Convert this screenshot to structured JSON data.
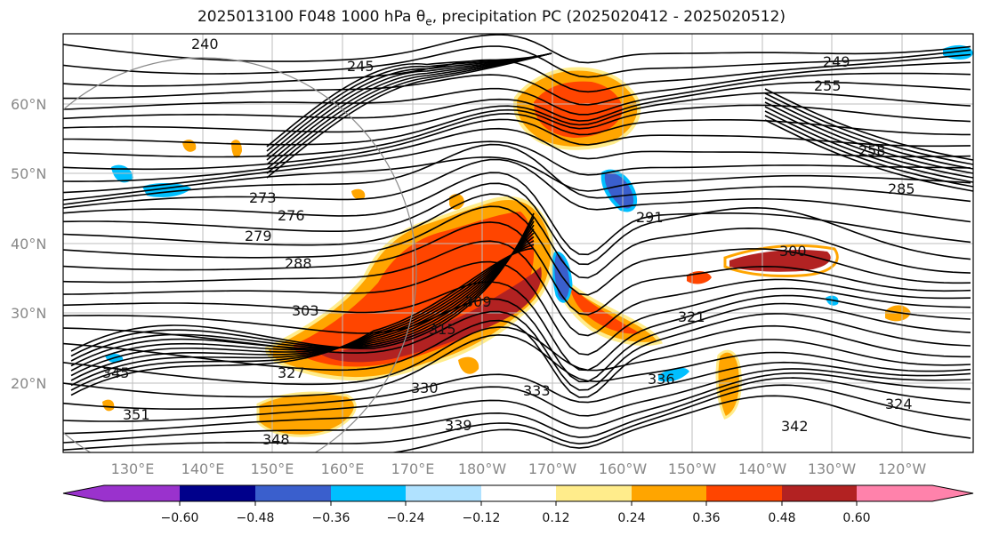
{
  "title": {
    "prefix": "2025013100 F048 1000 hPa θ",
    "sub": "e",
    "suffix": ", precipitation PC (2025020412 - 2025020512)"
  },
  "map": {
    "lat_labels": [
      "60°N",
      "50°N",
      "40°N",
      "30°N",
      "20°N"
    ],
    "lon_labels": [
      "130°E",
      "140°E",
      "150°E",
      "160°E",
      "170°E",
      "180°W",
      "170°W",
      "160°W",
      "150°W",
      "140°W",
      "130°W",
      "120°W"
    ],
    "contour_labels": [
      "240",
      "245",
      "249",
      "258",
      "255",
      "273",
      "276",
      "279",
      "285",
      "288",
      "291",
      "300",
      "303",
      "309",
      "315",
      "321",
      "324",
      "327",
      "330",
      "333",
      "336",
      "339",
      "342",
      "345",
      "348",
      "351"
    ]
  },
  "colorbar": {
    "colors": [
      "#9a32cd",
      "#00008b",
      "#3a5fcd",
      "#00bfff",
      "#b0e2ff",
      "#ffffff",
      "#ffec8b",
      "#ffa500",
      "#ff4500",
      "#b22222",
      "#ff82ab"
    ],
    "tick_labels": [
      "−0.60",
      "−0.48",
      "−0.36",
      "−0.24",
      "−0.12",
      "0.12",
      "0.24",
      "0.36",
      "0.48",
      "0.60"
    ]
  }
}
